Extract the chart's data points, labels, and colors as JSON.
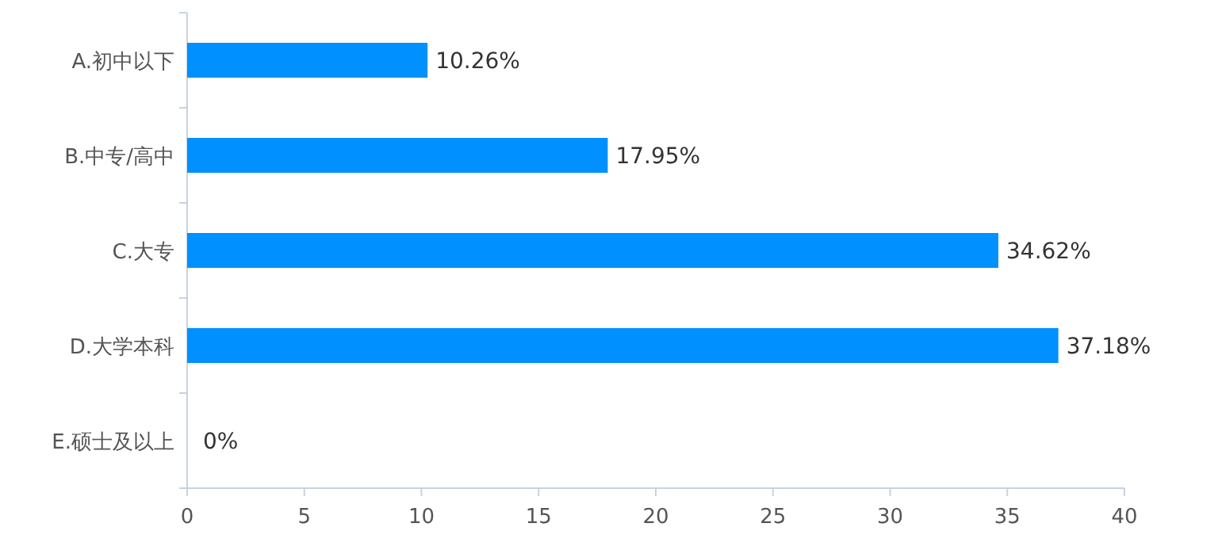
{
  "chart_data": {
    "type": "bar",
    "orientation": "horizontal",
    "categories": [
      "A.初中以下",
      "B.中专/高中",
      "C.大专",
      "D.大学本科",
      "E.硕士及以上"
    ],
    "values": [
      10.26,
      17.95,
      34.62,
      37.18,
      0
    ],
    "value_labels": [
      "10.26%",
      "17.95%",
      "34.62%",
      "37.18%",
      "0%"
    ],
    "color": "#0090ff",
    "xlim": [
      0,
      40
    ],
    "xticks": [
      0,
      5,
      10,
      15,
      20,
      25,
      30,
      35,
      40
    ],
    "grid": false
  }
}
